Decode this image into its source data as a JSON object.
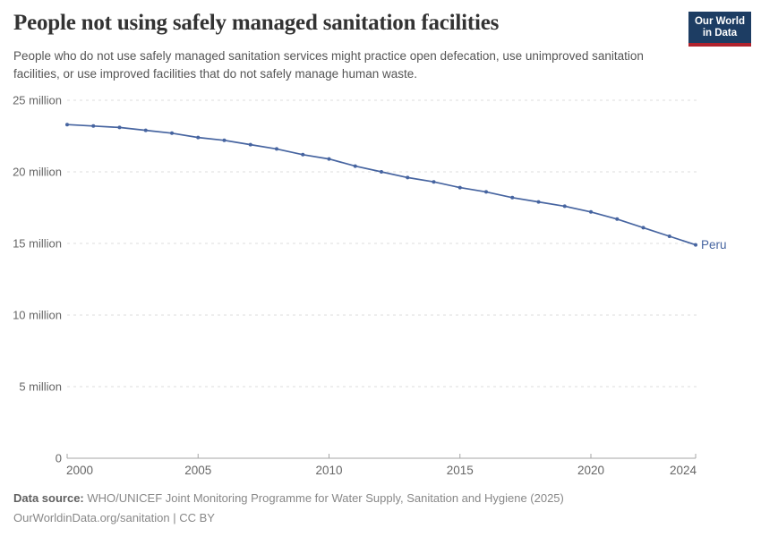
{
  "header": {
    "title": "People not using safely managed sanitation facilities",
    "subtitle": "People who do not use safely managed sanitation services might practice open defecation, use unimproved sanitation facilities, or use improved facilities that do not safely manage human waste.",
    "logo": {
      "line1": "Our World",
      "line2": "in Data"
    }
  },
  "colors": {
    "series_blue": "#4664a0",
    "logo_navy": "#1d3d63",
    "logo_red": "#b0232d",
    "gridline": "#dddddd",
    "axis": "#a5a5a5",
    "tick_label": "#666666"
  },
  "chart_data": {
    "type": "line",
    "title": "People not using safely managed sanitation facilities",
    "unit": "million people",
    "x": [
      2000,
      2001,
      2002,
      2003,
      2004,
      2005,
      2006,
      2007,
      2008,
      2009,
      2010,
      2011,
      2012,
      2013,
      2014,
      2015,
      2016,
      2017,
      2018,
      2019,
      2020,
      2021,
      2022,
      2023,
      2024
    ],
    "series": [
      {
        "name": "Peru",
        "color": "#4664a0",
        "values": [
          23.3,
          23.2,
          23.1,
          22.9,
          22.7,
          22.4,
          22.2,
          21.9,
          21.6,
          21.2,
          20.9,
          20.4,
          20.0,
          19.6,
          19.3,
          18.9,
          18.6,
          18.2,
          17.9,
          17.6,
          17.2,
          16.7,
          16.1,
          15.5,
          14.9
        ]
      }
    ],
    "xlabel": "",
    "ylabel": "",
    "ylim": [
      0,
      25
    ],
    "yticks": [
      {
        "value": 0,
        "label": "0"
      },
      {
        "value": 5,
        "label": "5 million"
      },
      {
        "value": 10,
        "label": "10 million"
      },
      {
        "value": 15,
        "label": "15 million"
      },
      {
        "value": 20,
        "label": "20 million"
      },
      {
        "value": 25,
        "label": "25 million"
      }
    ],
    "xticks": [
      2000,
      2005,
      2010,
      2015,
      2020,
      2024
    ],
    "grid": true,
    "legend_position": "end-of-line"
  },
  "footer": {
    "datasource_label": "Data source:",
    "datasource_text": "WHO/UNICEF Joint Monitoring Programme for Water Supply, Sanitation and Hygiene (2025)",
    "license_line": "OurWorldinData.org/sanitation | CC BY"
  }
}
